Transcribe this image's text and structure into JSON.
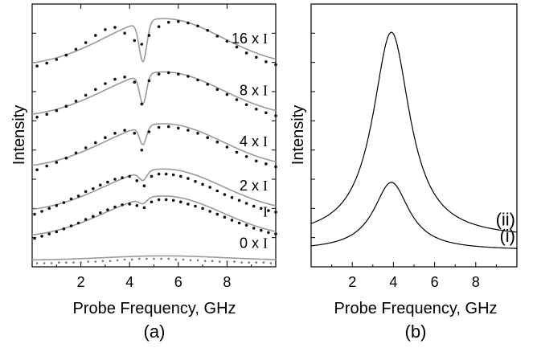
{
  "chart_data": [
    {
      "type": "scatter",
      "panel_label": "(a)",
      "xlabel": "Probe Frequency, GHz",
      "ylabel": "Intensity",
      "xlim": [
        0,
        10
      ],
      "x_ticks": [
        2,
        4,
        6,
        8
      ],
      "y_scale": "arbitrary, traces vertically offset",
      "series": [
        {
          "name": "0 x I",
          "label_main": "0 x",
          "label_sym": "I",
          "offset": 0.0,
          "fit_color": "#9a9a9a",
          "x": [
            0.2,
            0.5,
            0.8,
            1.1,
            1.4,
            1.7,
            2.0,
            2.3,
            2.6,
            2.9,
            3.2,
            3.5,
            3.8,
            4.1,
            4.4,
            4.7,
            5.0,
            5.3,
            5.6,
            5.9,
            6.2,
            6.5,
            6.8,
            7.1,
            7.4,
            7.7,
            8.0,
            8.3,
            8.6,
            8.9,
            9.2,
            9.5,
            9.8
          ],
          "y": [
            0.0,
            0.0,
            0.0,
            0.01,
            0.01,
            0.01,
            0.01,
            0.02,
            0.02,
            0.03,
            0.03,
            0.04,
            0.05,
            0.05,
            0.06,
            0.06,
            0.06,
            0.06,
            0.06,
            0.05,
            0.05,
            0.04,
            0.04,
            0.03,
            0.03,
            0.02,
            0.02,
            0.02,
            0.01,
            0.01,
            0.01,
            0.01,
            0.0
          ],
          "fit": {
            "amp": 0.06,
            "dip_depth": 0.0,
            "dip_width": 0.3
          }
        },
        {
          "name": "I",
          "label_main": "",
          "label_sym": "I",
          "offset": 0.3,
          "fit_color": "#9a9a9a",
          "x": [
            0.1,
            0.4,
            0.7,
            1.0,
            1.3,
            1.6,
            1.9,
            2.2,
            2.5,
            2.8,
            3.1,
            3.4,
            3.7,
            4.0,
            4.3,
            4.6,
            4.9,
            5.2,
            5.5,
            5.8,
            6.1,
            6.4,
            6.7,
            7.0,
            7.3,
            7.6,
            7.9,
            8.2,
            8.5,
            8.8,
            9.1,
            9.4,
            9.7,
            10.0
          ],
          "y": [
            0.34,
            0.37,
            0.4,
            0.43,
            0.47,
            0.51,
            0.55,
            0.6,
            0.64,
            0.69,
            0.73,
            0.77,
            0.8,
            0.81,
            0.79,
            0.76,
            0.84,
            0.87,
            0.87,
            0.86,
            0.84,
            0.81,
            0.78,
            0.75,
            0.71,
            0.67,
            0.63,
            0.59,
            0.55,
            0.52,
            0.48,
            0.45,
            0.42,
            0.4
          ],
          "fit": {
            "amp": 0.58,
            "dip_depth": 0.07,
            "dip_width": 0.22
          }
        },
        {
          "name": "2 x I",
          "label_main": "2 x",
          "label_sym": "I",
          "offset": 0.65,
          "fit_color": "#9a9a9a",
          "x": [
            0.1,
            0.4,
            0.7,
            1.0,
            1.3,
            1.6,
            1.9,
            2.2,
            2.5,
            2.8,
            3.1,
            3.4,
            3.7,
            4.0,
            4.3,
            4.6,
            4.9,
            5.2,
            5.5,
            5.8,
            6.1,
            6.4,
            6.7,
            7.0,
            7.3,
            7.6,
            7.9,
            8.2,
            8.5,
            8.8,
            9.1,
            9.4,
            9.7,
            10.0
          ],
          "y": [
            0.67,
            0.71,
            0.75,
            0.79,
            0.83,
            0.88,
            0.92,
            0.98,
            1.02,
            1.07,
            1.11,
            1.15,
            1.17,
            1.19,
            1.13,
            1.06,
            1.19,
            1.22,
            1.22,
            1.21,
            1.19,
            1.16,
            1.12,
            1.08,
            1.04,
            0.99,
            0.94,
            0.9,
            0.86,
            0.82,
            0.78,
            0.75,
            0.72,
            0.7
          ],
          "fit": {
            "amp": 0.6,
            "dip_depth": 0.12,
            "dip_width": 0.22
          }
        },
        {
          "name": "4 x I",
          "label_main": "4 x",
          "label_sym": "I",
          "offset": 1.25,
          "fit_color": "#9a9a9a",
          "x": [
            0.2,
            0.6,
            1.0,
            1.4,
            1.8,
            2.2,
            2.6,
            3.0,
            3.4,
            3.8,
            4.2,
            4.5,
            4.8,
            5.2,
            5.6,
            6.0,
            6.4,
            6.8,
            7.2,
            7.6,
            8.0,
            8.4,
            8.8,
            9.2,
            9.6,
            10.0
          ],
          "y": [
            1.28,
            1.33,
            1.38,
            1.44,
            1.51,
            1.58,
            1.65,
            1.72,
            1.78,
            1.82,
            1.78,
            1.55,
            1.8,
            1.86,
            1.87,
            1.85,
            1.82,
            1.78,
            1.72,
            1.66,
            1.59,
            1.52,
            1.46,
            1.4,
            1.36,
            1.32
          ],
          "fit": {
            "amp": 0.62,
            "dip_depth": 0.25,
            "dip_width": 0.2
          }
        },
        {
          "name": "8 x I",
          "label_main": "8 x",
          "label_sym": "I",
          "offset": 1.95,
          "fit_color": "#9a9a9a",
          "x": [
            0.2,
            0.6,
            1.0,
            1.4,
            1.8,
            2.2,
            2.6,
            3.0,
            3.4,
            3.8,
            4.2,
            4.5,
            4.8,
            5.2,
            5.6,
            6.0,
            6.4,
            6.8,
            7.2,
            7.6,
            8.0,
            8.4,
            8.8,
            9.2,
            9.6,
            10.0
          ],
          "y": [
            2.0,
            2.04,
            2.09,
            2.15,
            2.22,
            2.3,
            2.38,
            2.46,
            2.52,
            2.55,
            2.48,
            2.18,
            2.5,
            2.59,
            2.61,
            2.59,
            2.56,
            2.51,
            2.45,
            2.38,
            2.31,
            2.24,
            2.17,
            2.11,
            2.06,
            2.02
          ],
          "fit": {
            "amp": 0.63,
            "dip_depth": 0.4,
            "dip_width": 0.2
          }
        },
        {
          "name": "16 x I",
          "label_main": "16 x",
          "label_sym": "I",
          "offset": 2.65,
          "fit_color": "#9a9a9a",
          "x": [
            0.2,
            0.6,
            1.0,
            1.4,
            1.8,
            2.2,
            2.6,
            3.0,
            3.4,
            3.8,
            4.2,
            4.5,
            4.8,
            5.2,
            5.6,
            6.0,
            6.4,
            6.8,
            7.2,
            7.6,
            8.0,
            8.4,
            8.8,
            9.2,
            9.6,
            10.0
          ],
          "y": [
            2.7,
            2.74,
            2.79,
            2.85,
            2.93,
            3.02,
            3.12,
            3.2,
            3.23,
            3.15,
            3.05,
            3.0,
            3.12,
            3.24,
            3.3,
            3.31,
            3.29,
            3.25,
            3.19,
            3.11,
            3.04,
            2.96,
            2.88,
            2.82,
            2.76,
            2.72
          ],
          "fit": {
            "amp": 0.66,
            "dip_depth": 0.55,
            "dip_width": 0.22
          }
        }
      ]
    },
    {
      "type": "line",
      "panel_label": "(b)",
      "xlabel": "Probe Frequency, GHz",
      "ylabel": "Intensity",
      "xlim": [
        0,
        10
      ],
      "x_ticks": [
        2,
        4,
        6,
        8
      ],
      "series": [
        {
          "name": "(i)",
          "center": 3.9,
          "hwhm": 1.05,
          "peak": 0.36,
          "base": 0.07
        },
        {
          "name": "(ii)",
          "center": 3.9,
          "hwhm": 1.1,
          "peak": 1.0,
          "base": 0.12
        }
      ]
    }
  ]
}
